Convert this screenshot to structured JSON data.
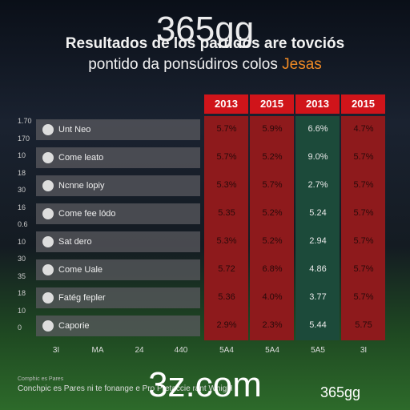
{
  "watermark_top": "365gg",
  "title": {
    "line1": "Resultados de los partidos are tovciós",
    "line2": "pontido da ponsúdiros colos",
    "highlight": "Jesas"
  },
  "table": {
    "headers": [
      "2013",
      "2015",
      "2013",
      "2015"
    ],
    "rows": [
      {
        "team": "Unt Neo",
        "cells": [
          "5.7%",
          "5.9%",
          "6.6%",
          "4.7%"
        ]
      },
      {
        "team": "Come leato",
        "cells": [
          "5.7%",
          "5.2%",
          "9.0%",
          "5.7%"
        ]
      },
      {
        "team": "Ncnne lopiy",
        "cells": [
          "5.3%",
          "5.7%",
          "2.7%",
          "5.7%"
        ]
      },
      {
        "team": "Come fee lódo",
        "cells": [
          "5.35",
          "5.2%",
          "5.24",
          "5.7%"
        ]
      },
      {
        "team": "Sat dero",
        "cells": [
          "5.3%",
          "5.2%",
          "2.94",
          "5.7%"
        ]
      },
      {
        "team": "Come Uale",
        "cells": [
          "5.72",
          "6.8%",
          "4.86",
          "5.7%"
        ]
      },
      {
        "team": "Fatég fepler",
        "cells": [
          "5.36",
          "4.0%",
          "3.77",
          "5.7%"
        ]
      },
      {
        "team": "Caporie",
        "cells": [
          "2.9%",
          "2.3%",
          "5.44",
          "5.75"
        ]
      }
    ],
    "left_labels": [
      "1.70",
      "170",
      "10",
      "18",
      "30",
      "16",
      "0.6",
      "10",
      "30",
      "35",
      "18",
      "10",
      "0"
    ],
    "bottom_labels": [
      "3I",
      "MA",
      "24",
      "440",
      "5A4",
      "5A4",
      "5A5",
      "3I"
    ]
  },
  "footer": {
    "line1": "Comphic es Pares",
    "line2": "Conchpic es Pares ni te fonange e Pro Pretaccie rant WhigH",
    "watermark": "3z.com",
    "logo": "365gg"
  }
}
